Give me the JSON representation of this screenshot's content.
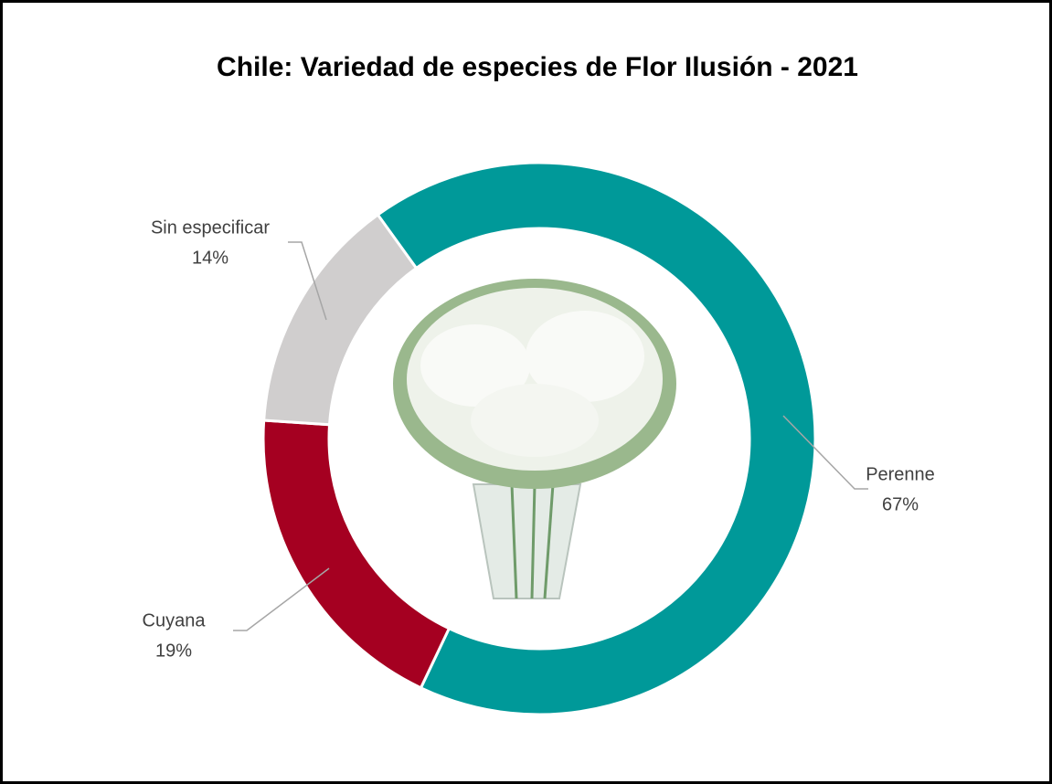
{
  "chart_data": {
    "type": "donut",
    "title": "Chile: Variedad de especies de Flor Ilusión - 2021",
    "categories": [
      "Perenne",
      "Cuyana",
      "Sin especificar"
    ],
    "values": [
      67,
      19,
      14
    ],
    "value_labels": [
      "67%",
      "19%",
      "14%"
    ],
    "colors": [
      "#009999",
      "#a50021",
      "#d0cece"
    ]
  }
}
